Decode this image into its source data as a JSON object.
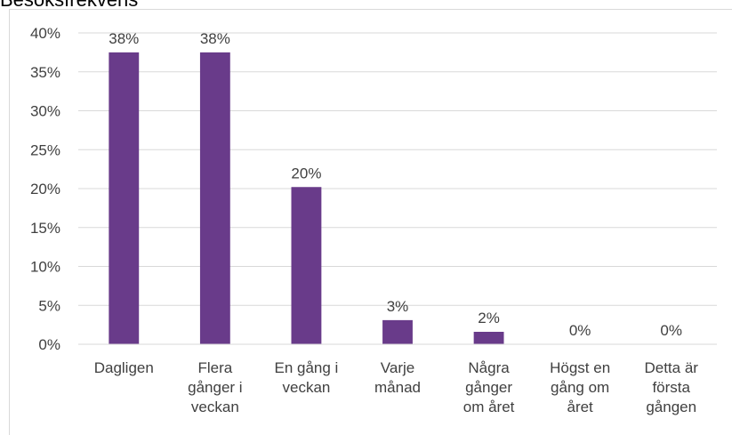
{
  "chart_data": {
    "type": "bar",
    "title": "Besöksfrekvens",
    "categories": [
      "Dagligen",
      "Flera gånger i veckan",
      "En gång i veckan",
      "Varje månad",
      "Några gånger om året",
      "Högst en gång om året",
      "Detta är första gången"
    ],
    "values": [
      37.5,
      37.5,
      20.2,
      3.1,
      1.6,
      0,
      0
    ],
    "value_labels": [
      "38%",
      "38%",
      "20%",
      "3%",
      "2%",
      "0%",
      "0%"
    ],
    "color": "#693b8a",
    "ylim": [
      0,
      40
    ],
    "yticks": [
      {
        "value": 0,
        "label": "0%"
      },
      {
        "value": 5,
        "label": "5%"
      },
      {
        "value": 10,
        "label": "10%"
      },
      {
        "value": 15,
        "label": "15%"
      },
      {
        "value": 20,
        "label": "20%"
      },
      {
        "value": 25,
        "label": "25%"
      },
      {
        "value": 30,
        "label": "30%"
      },
      {
        "value": 35,
        "label": "35%"
      },
      {
        "value": 40,
        "label": "40%"
      }
    ],
    "grid": true
  }
}
